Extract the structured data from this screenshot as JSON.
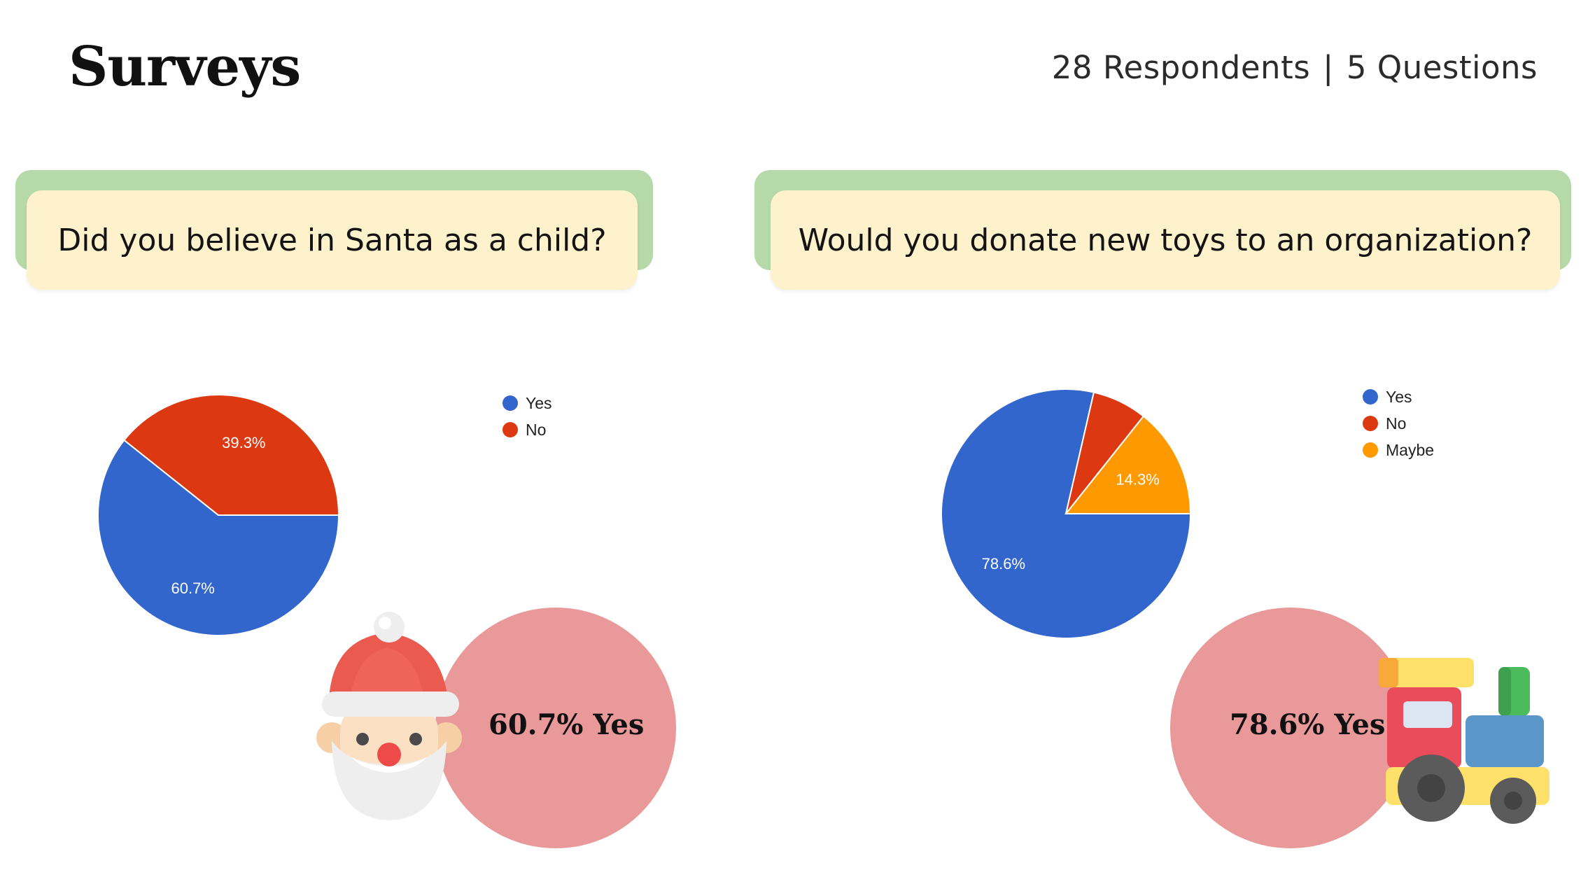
{
  "header": {
    "title": "Surveys",
    "respondents": "28 Respondents",
    "separator": "|",
    "questions": "5 Questions"
  },
  "colors": {
    "yes": "#3366cc",
    "no": "#dc3912",
    "maybe": "#ff9900",
    "stat_circle": "#e99999",
    "card_back": "#b6d9a9",
    "card_front": "#fdf2cc"
  },
  "icons": [
    "santa-icon",
    "toy-train-icon"
  ],
  "surveys": [
    {
      "question": "Did you believe in Santa as a child?",
      "highlight": "60.7% Yes"
    },
    {
      "question": "Would you donate new toys to an organization?",
      "highlight": "78.6% Yes"
    }
  ],
  "chart_data": [
    {
      "type": "pie",
      "title": "Did you believe in Santa as a child?",
      "categories": [
        "Yes",
        "No"
      ],
      "values": [
        60.7,
        39.3
      ],
      "labels": [
        "60.7%",
        "39.3%"
      ],
      "colors": [
        "#3366cc",
        "#dc3912"
      ],
      "legend": "top-right"
    },
    {
      "type": "pie",
      "title": "Would you donate new toys to an organization?",
      "categories": [
        "Yes",
        "No",
        "Maybe"
      ],
      "values": [
        78.6,
        7.1,
        14.3
      ],
      "labels": [
        "78.6%",
        "",
        "14.3%"
      ],
      "colors": [
        "#3366cc",
        "#dc3912",
        "#ff9900"
      ],
      "legend": "top-right"
    }
  ]
}
